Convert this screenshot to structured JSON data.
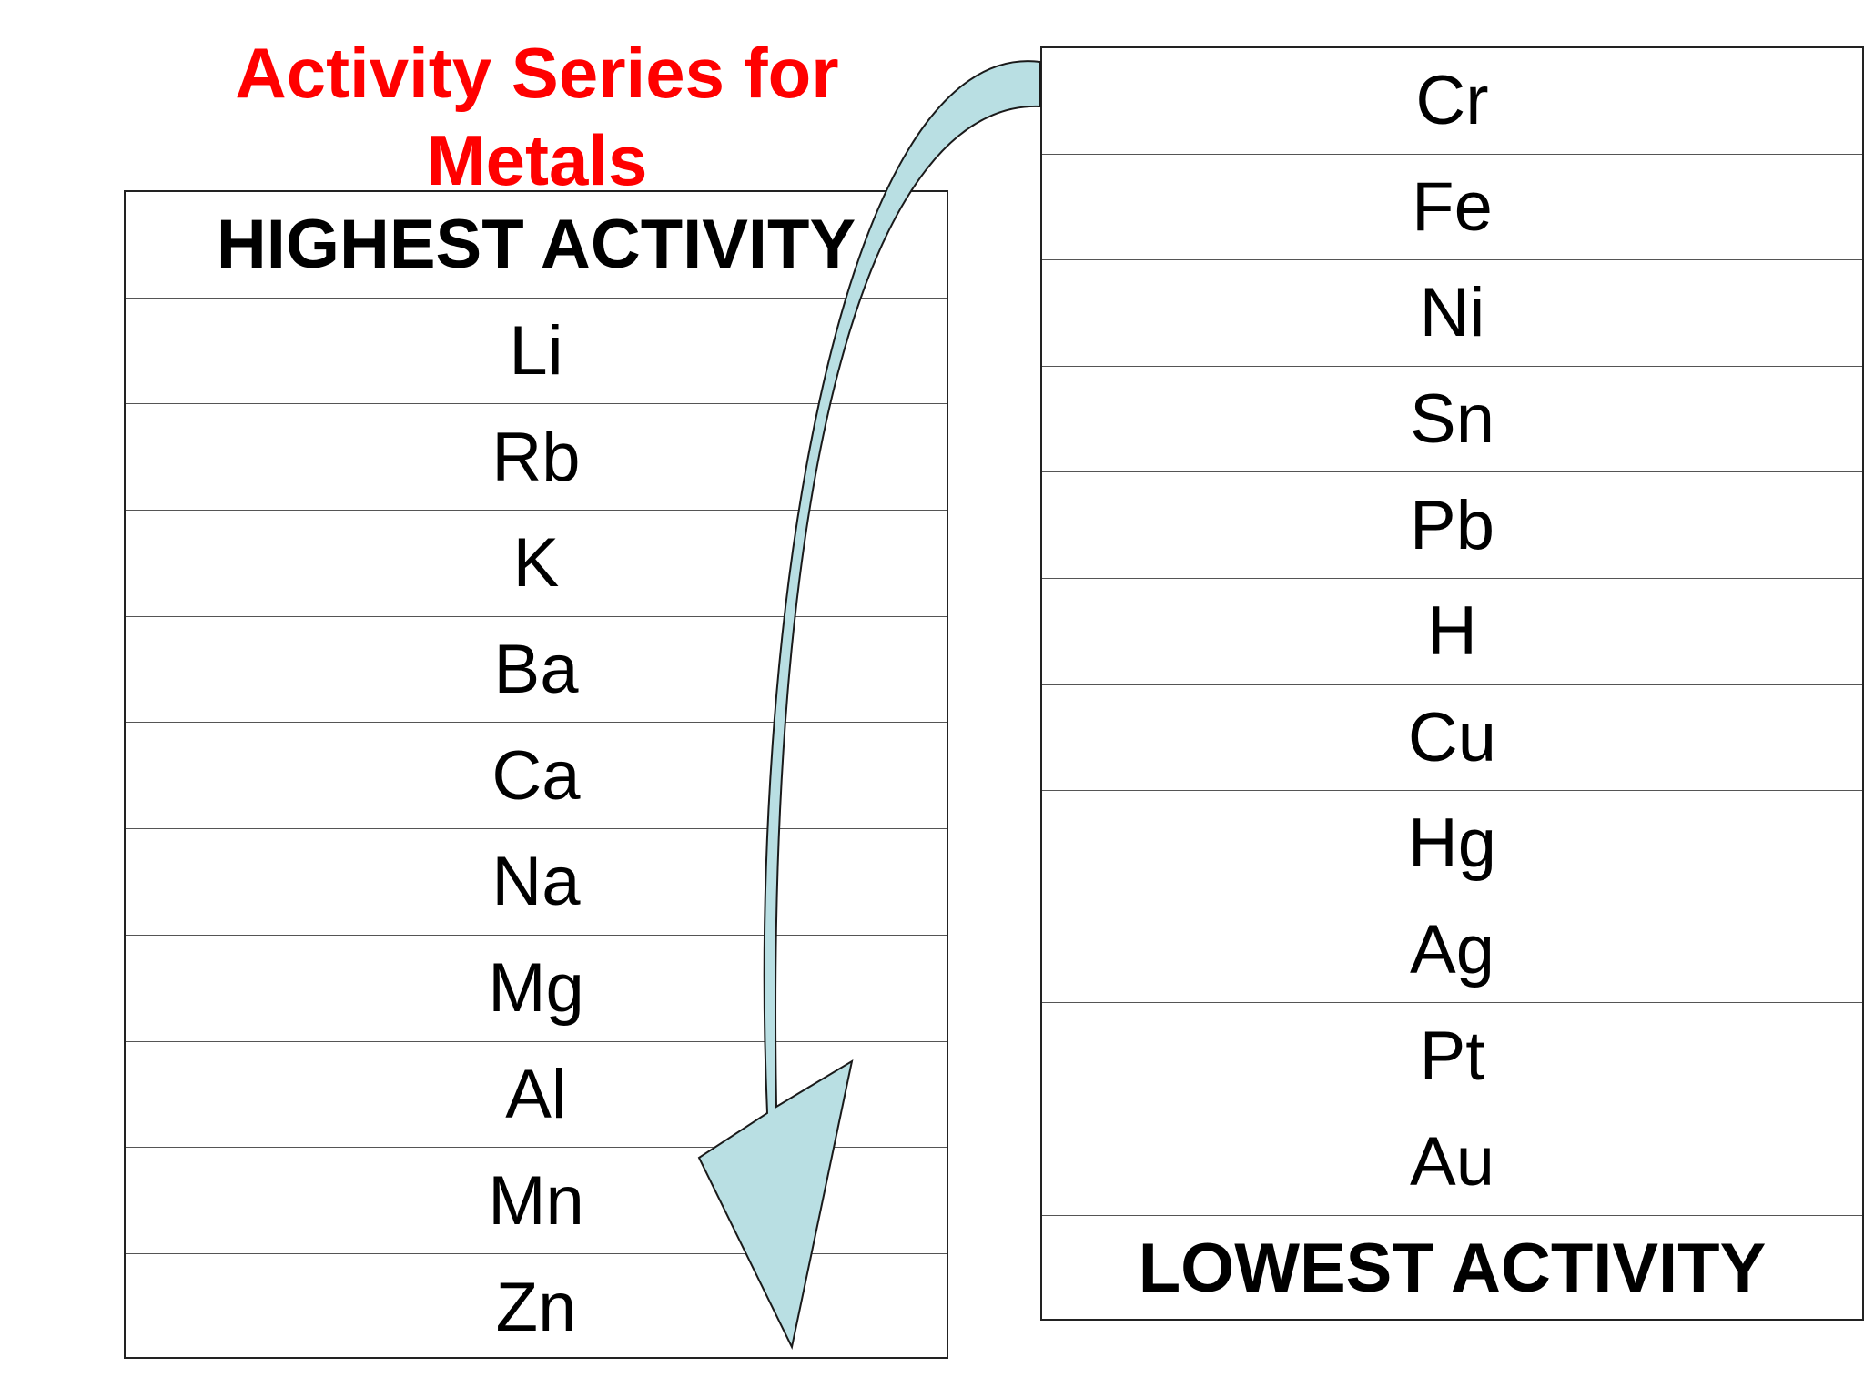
{
  "title": {
    "line1": "Activity Series for",
    "line2": "Metals"
  },
  "left_column": {
    "header": "HIGHEST ACTIVITY",
    "elements": [
      "Li",
      "Rb",
      "K",
      "Ba",
      "Ca",
      "Na",
      "Mg",
      "Al",
      "Mn",
      "Zn"
    ]
  },
  "right_column": {
    "elements": [
      "Cr",
      "Fe",
      "Ni",
      "Sn",
      "Pb",
      "H",
      "Cu",
      "Hg",
      "Ag",
      "Pt",
      "Au"
    ],
    "footer": "LOWEST ACTIVITY"
  },
  "colors": {
    "title": "#ff0000",
    "arrow_fill": "#b9dfe3",
    "arrow_stroke": "#1a1a1a"
  }
}
